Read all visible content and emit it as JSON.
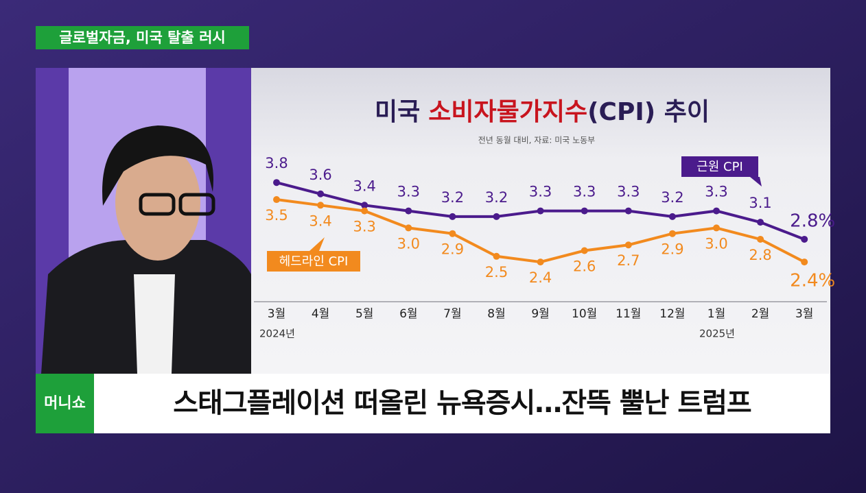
{
  "header": {
    "banner": "글로벌자금, 미국 탈출 러시",
    "logo": "머니쇼",
    "caption": "스태그플레이션 떠올린 뉴욕증시…잔뜩 뿔난 트럼프"
  },
  "chart_data": {
    "type": "line",
    "title": [
      "미국",
      "소비자물가지수",
      "(CPI) 추이"
    ],
    "subtitle": "전년 동월 대비, 자료: 미국 노동부",
    "categories": [
      "3월",
      "4월",
      "5월",
      "6월",
      "7월",
      "8월",
      "9월",
      "10월",
      "11월",
      "12월",
      "1월",
      "2월",
      "3월"
    ],
    "year_labels": [
      "2024년",
      null,
      null,
      null,
      null,
      null,
      null,
      null,
      null,
      null,
      "2025년",
      null,
      null
    ],
    "ylim": [
      1.7,
      4.6
    ],
    "series": [
      {
        "name": "근원 CPI",
        "color": "#4b1b8c",
        "values": [
          3.8,
          3.6,
          3.4,
          3.3,
          3.2,
          3.2,
          3.3,
          3.3,
          3.3,
          3.2,
          3.3,
          3.1,
          2.8
        ],
        "value_labels": [
          "3.8",
          "3.6",
          "3.4",
          "3.3",
          "3.2",
          "3.2",
          "3.3",
          "3.3",
          "3.3",
          "3.2",
          "3.3",
          "3.1",
          "2.8%"
        ]
      },
      {
        "name": "헤드라인 CPI",
        "color": "#f28a1e",
        "values": [
          3.5,
          3.4,
          3.3,
          3.0,
          2.9,
          2.5,
          2.4,
          2.6,
          2.7,
          2.9,
          3.0,
          2.8,
          2.4
        ],
        "value_labels": [
          "3.5",
          "3.4",
          "3.3",
          "3.0",
          "2.9",
          "2.5",
          "2.4",
          "2.6",
          "2.7",
          "2.9",
          "3.0",
          "2.8",
          "2.4%"
        ]
      }
    ]
  }
}
